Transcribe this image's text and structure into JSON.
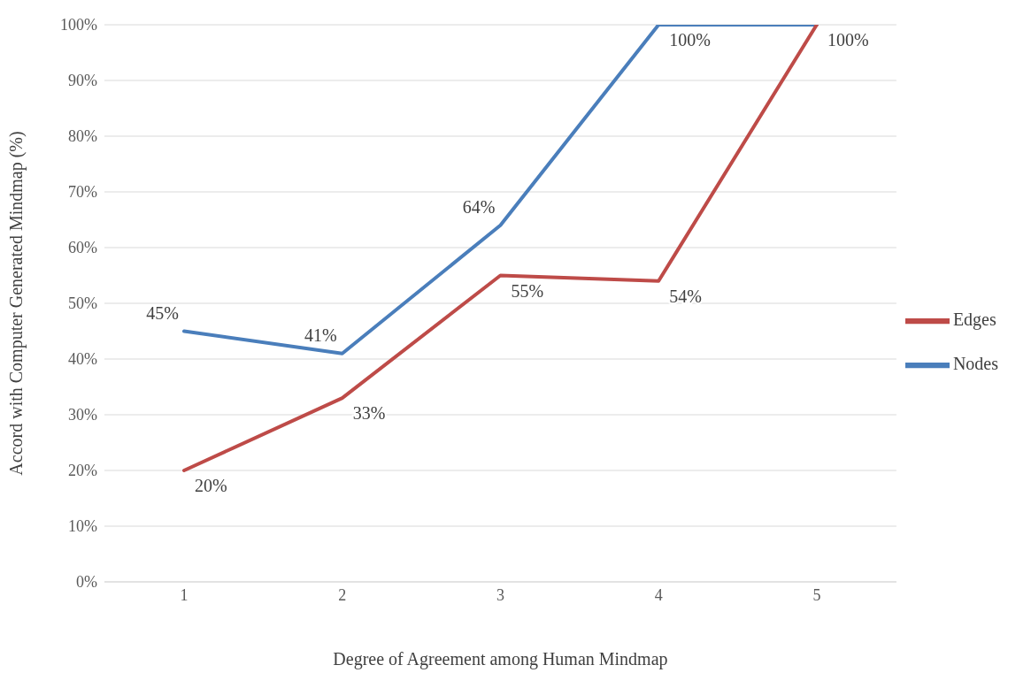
{
  "chart_data": {
    "type": "line",
    "xlabel": "Degree of Agreement among Human Mindmap",
    "ylabel": "Accord with Computer Generated Mindmap (%)",
    "categories": [
      "1",
      "2",
      "3",
      "4",
      "5"
    ],
    "series": [
      {
        "name": "Nodes",
        "color": "#4a7ebb",
        "values": [
          45,
          41,
          64,
          100,
          100
        ],
        "value_labels": [
          "45%",
          "41%",
          "64%",
          "100%",
          null
        ]
      },
      {
        "name": "Edges",
        "color": "#be4b48",
        "values": [
          20,
          33,
          55,
          54,
          100
        ],
        "value_labels": [
          "20%",
          "33%",
          "55%",
          "54%",
          "100%"
        ]
      }
    ],
    "ylim": [
      0,
      100
    ],
    "yticks": [
      {
        "value": 0,
        "label": "0%"
      },
      {
        "value": 10,
        "label": "10%"
      },
      {
        "value": 20,
        "label": "20%"
      },
      {
        "value": 30,
        "label": "30%"
      },
      {
        "value": 40,
        "label": "40%"
      },
      {
        "value": 50,
        "label": "50%"
      },
      {
        "value": 60,
        "label": "60%"
      },
      {
        "value": 70,
        "label": "70%"
      },
      {
        "value": 80,
        "label": "80%"
      },
      {
        "value": 90,
        "label": "90%"
      },
      {
        "value": 100,
        "label": "100%"
      }
    ],
    "grid": "y",
    "legend": "right",
    "marker": "none",
    "line_style": "solid"
  }
}
